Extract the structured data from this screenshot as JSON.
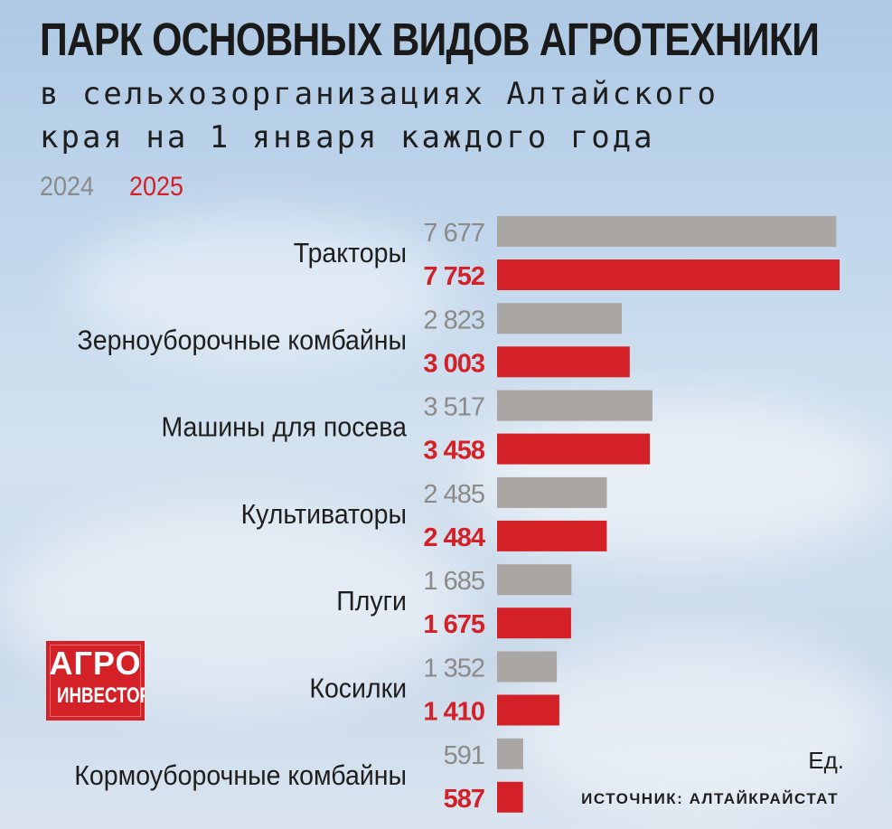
{
  "header": {
    "title": "ПАРК ОСНОВНЫХ ВИДОВ АГРОТЕХНИКИ",
    "subtitle_line1": "в сельхозорганизациях Алтайского",
    "subtitle_line2": "края на 1 января каждого года"
  },
  "legend": {
    "label_2024": "2024",
    "label_2025": "2025"
  },
  "logo": {
    "line1": "АГРО",
    "line2": "ИНВЕСТОР"
  },
  "footer": {
    "unit": "Ед.",
    "source": "ИСТОЧНИК: АЛТАЙКРАЙСТАТ"
  },
  "colors": {
    "series_2024": "#a9a6a3",
    "series_2025": "#d42027",
    "value_2024": "#8c8a88",
    "value_2025": "#d42027",
    "category_text": "#1e1e1e"
  },
  "chart_data": {
    "type": "bar",
    "orientation": "horizontal",
    "title": "ПАРК ОСНОВНЫХ ВИДОВ АГРОТЕХНИКИ",
    "categories": [
      "Тракторы",
      "Зерноуборочные комбайны",
      "Машины для посева",
      "Культиваторы",
      "Плуги",
      "Косилки",
      "Кормоуборочные комбайны"
    ],
    "series": [
      {
        "name": "2024",
        "values": [
          7677,
          2823,
          3517,
          2485,
          1685,
          1352,
          591
        ],
        "labels": [
          "7 677",
          "2 823",
          "3 517",
          "2 485",
          "1 685",
          "1 352",
          "591"
        ]
      },
      {
        "name": "2025",
        "values": [
          7752,
          3003,
          3458,
          2484,
          1675,
          1410,
          587
        ],
        "labels": [
          "7 752",
          "3 003",
          "3 458",
          "2 484",
          "1 675",
          "1 410",
          "587"
        ]
      }
    ],
    "xlim": [
      0,
      7752
    ],
    "grid": false,
    "legend_position": "top-left"
  }
}
